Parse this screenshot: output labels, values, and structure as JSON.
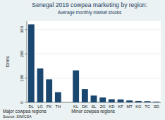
{
  "chart_data": {
    "type": "bar",
    "title": "Senegal 2019 cowpea marketing by region:",
    "subtitle": "Average monthly market stocks",
    "y_label": "tones",
    "categories": [
      "DL",
      "LG",
      "FK",
      "TH",
      null,
      "KL",
      "DK",
      "SL",
      "ZG",
      "KD",
      "KF",
      "MT",
      "KG",
      "TC",
      "SD"
    ],
    "values": [
      322,
      140,
      95,
      42,
      null,
      132,
      55,
      28,
      20,
      13,
      12,
      8,
      6,
      5,
      3
    ],
    "color": "#1a476f",
    "ylim": [
      0,
      335
    ],
    "yticks": [
      0,
      100,
      200,
      300
    ],
    "grid": true,
    "annotations": [
      "Major cowpea regions",
      "Minor cowpea regions"
    ],
    "source": "Source: SIM/CSA"
  }
}
